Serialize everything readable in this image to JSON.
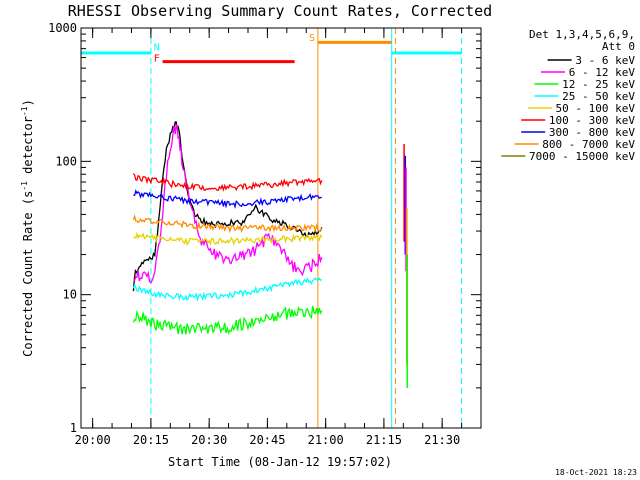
{
  "chart_data": {
    "type": "line",
    "title": "RHESSI Observing Summary Count Rates, Corrected",
    "xlabel": "Start Time (08-Jan-12 19:57:02)",
    "ylabel_parts": [
      "Corrected Count Rate (s",
      "-1",
      " detector",
      "-1",
      ")"
    ],
    "yscale": "log",
    "ylim": [
      1,
      1000
    ],
    "xlim_minutes": [
      -3,
      100
    ],
    "x_ticks": [
      {
        "label": "20:00",
        "minutes": 0
      },
      {
        "label": "20:15",
        "minutes": 15
      },
      {
        "label": "20:30",
        "minutes": 30
      },
      {
        "label": "20:45",
        "minutes": 45
      },
      {
        "label": "21:00",
        "minutes": 60
      },
      {
        "label": "21:15",
        "minutes": 75
      },
      {
        "label": "21:30",
        "minutes": 90
      }
    ],
    "y_ticks": [
      {
        "label": "1",
        "value": 1
      },
      {
        "label": "10",
        "value": 10
      },
      {
        "label": "100",
        "value": 100
      },
      {
        "label": "1000",
        "value": 1000
      }
    ],
    "legend": {
      "header": [
        "Det 1,3,4,5,6,9,",
        "Att 0"
      ],
      "position": "right"
    },
    "series": [
      {
        "name": "3 - 6 keV",
        "color": "#000000",
        "x": [
          10.5,
          11,
          12,
          13,
          14,
          16,
          17,
          18,
          19,
          20,
          21,
          21.5,
          22,
          22.5,
          23,
          24,
          25,
          26,
          27,
          28,
          29,
          30,
          32,
          34,
          36,
          38,
          40,
          42,
          44,
          46,
          48,
          50,
          52,
          54,
          56,
          58,
          59
        ],
        "y": [
          11,
          15,
          16,
          17,
          18,
          20,
          35,
          70,
          120,
          160,
          185,
          190,
          180,
          150,
          110,
          70,
          50,
          42,
          38,
          36,
          35,
          34,
          34,
          33,
          35,
          34,
          38,
          46,
          40,
          37,
          35,
          33,
          31,
          29,
          28,
          29,
          32
        ]
      },
      {
        "name": "6 - 12 keV",
        "color": "#ff00ff",
        "x": [
          10.5,
          12,
          14,
          16,
          17,
          18,
          19,
          20,
          21,
          21.5,
          22,
          22.5,
          23,
          24,
          25,
          26,
          27,
          28,
          29,
          30,
          32,
          34,
          36,
          38,
          40,
          42,
          44,
          45,
          46,
          48,
          50,
          52,
          54,
          56,
          58,
          59
        ],
        "y": [
          14,
          14,
          13,
          14,
          22,
          40,
          80,
          130,
          170,
          175,
          160,
          130,
          100,
          70,
          50,
          38,
          30,
          25,
          23,
          21,
          20,
          19,
          18,
          19,
          20,
          22,
          25,
          30,
          27,
          22,
          19,
          16,
          15,
          16,
          18,
          19
        ]
      },
      {
        "name": "12 - 25 keV",
        "color": "#00ff00",
        "x": [
          10.5,
          12,
          14,
          16,
          18,
          20,
          22,
          24,
          26,
          28,
          30,
          32,
          34,
          36,
          38,
          40,
          42,
          44,
          46,
          48,
          50,
          52,
          54,
          56,
          58,
          59
        ],
        "y": [
          6.5,
          7,
          6.5,
          6,
          6,
          5.8,
          5.6,
          5.5,
          5.5,
          5.5,
          5.6,
          5.6,
          5.7,
          5.7,
          6,
          6,
          6.2,
          6.5,
          6.8,
          7,
          7.2,
          7.3,
          7.3,
          7.4,
          7.5,
          7.6
        ]
      },
      {
        "name": "25 - 50 keV",
        "color": "#00ffff",
        "x": [
          10.5,
          12,
          14,
          16,
          18,
          20,
          22,
          24,
          26,
          28,
          30,
          32,
          34,
          36,
          38,
          40,
          42,
          44,
          46,
          48,
          50,
          52,
          54,
          56,
          58,
          59
        ],
        "y": [
          11.5,
          11,
          10.5,
          10,
          10,
          9.8,
          9.7,
          9.6,
          9.6,
          9.6,
          9.7,
          9.8,
          9.9,
          10,
          10.2,
          10.5,
          10.8,
          11,
          11.3,
          11.6,
          12,
          12.2,
          12.4,
          12.6,
          12.8,
          13
        ]
      },
      {
        "name": "50 - 100 keV",
        "color": "#e6d200",
        "x": [
          10.5,
          12,
          14,
          16,
          18,
          20,
          22,
          24,
          26,
          28,
          30,
          32,
          34,
          36,
          38,
          40,
          42,
          44,
          46,
          48,
          50,
          52,
          54,
          56,
          58,
          59
        ],
        "y": [
          28,
          27.5,
          27,
          26.5,
          26,
          25.8,
          25.5,
          25.2,
          25,
          25,
          25,
          25,
          25.2,
          25.3,
          25.5,
          25.6,
          25.8,
          26,
          26,
          26.2,
          26.3,
          26.5,
          26.7,
          26.8,
          27,
          27
        ]
      },
      {
        "name": "100 - 300 keV",
        "color": "#ff0000",
        "x": [
          10.5,
          12,
          14,
          16,
          18,
          20,
          22,
          24,
          26,
          28,
          30,
          32,
          34,
          36,
          38,
          40,
          42,
          44,
          46,
          48,
          50,
          52,
          54,
          56,
          58,
          59
        ],
        "y": [
          77,
          75,
          73,
          72,
          70,
          68,
          66,
          65,
          64,
          63.5,
          63,
          63,
          63,
          63.5,
          64,
          64.5,
          65,
          66,
          67,
          68,
          69,
          70,
          70.5,
          71,
          71.5,
          72
        ]
      },
      {
        "name": "300 - 800 keV",
        "color": "#0000ff",
        "x": [
          10.5,
          12,
          14,
          16,
          18,
          20,
          22,
          24,
          26,
          28,
          30,
          32,
          34,
          36,
          38,
          40,
          42,
          44,
          46,
          48,
          50,
          52,
          54,
          56,
          58,
          59
        ],
        "y": [
          58,
          57,
          56,
          55,
          54,
          53,
          52,
          51,
          50,
          49.5,
          49,
          48.5,
          48,
          48,
          48,
          48.5,
          49,
          49.5,
          50,
          51,
          52,
          52.5,
          53,
          53.5,
          54,
          54
        ]
      },
      {
        "name": "800 - 7000 keV",
        "color": "#ff8c00",
        "x": [
          10.5,
          12,
          14,
          16,
          18,
          20,
          22,
          24,
          26,
          28,
          30,
          32,
          34,
          36,
          38,
          40,
          42,
          44,
          46,
          48,
          50,
          52,
          54,
          56,
          58,
          59
        ],
        "y": [
          37,
          36.5,
          36,
          35.5,
          35,
          34.5,
          34,
          33.5,
          33,
          32.5,
          32,
          32,
          31.5,
          31.5,
          31.5,
          31.5,
          31.5,
          31.5,
          31.5,
          31.5,
          31.5,
          31.5,
          31.5,
          31.5,
          31.5,
          31.5
        ]
      },
      {
        "name": "7000 - 15000 keV",
        "color": "#808000",
        "x": [],
        "y": []
      }
    ],
    "post_gap_spikes": [
      {
        "color": "#ff0000",
        "x": 80.2,
        "y_top": 135,
        "y_bottom": 25
      },
      {
        "color": "#0000ff",
        "x": 80.5,
        "y_top": 110,
        "y_bottom": 20
      },
      {
        "color": "#ff00ff",
        "x": 80.7,
        "y_top": 90,
        "y_bottom": 15
      },
      {
        "color": "#ff8c00",
        "x": 80.9,
        "y_top": 45,
        "y_bottom": 3
      },
      {
        "color": "#00ff00",
        "x": 81.0,
        "y_top": 20,
        "y_bottom": 2
      }
    ],
    "attenuator_bars": [
      {
        "color": "#00ffff",
        "x_start": -3,
        "x_end": 15,
        "y": 650
      },
      {
        "color": "#00ffff",
        "x_start": 77,
        "x_end": 95,
        "y": 650
      },
      {
        "color": "#ff8c00",
        "x_start": 58,
        "x_end": 77,
        "y": 780
      },
      {
        "color": "#ff0000",
        "x_start": 18,
        "x_end": 52,
        "y": 560
      }
    ],
    "vertical_lines": [
      {
        "color": "#00ffff",
        "style": "solid",
        "x": -3
      },
      {
        "color": "#00ffff",
        "style": "dashed",
        "x": 15
      },
      {
        "color": "#ff8c00",
        "style": "solid",
        "x": 58
      },
      {
        "color": "#00ffff",
        "style": "solid",
        "x": 77
      },
      {
        "color": "#ff8c00",
        "style": "dashed",
        "x": 78
      },
      {
        "color": "#00ffff",
        "style": "dashed",
        "x": 95
      }
    ],
    "markers": [
      {
        "label": "N",
        "color": "#00ffff",
        "x": 16.5,
        "y": 680
      },
      {
        "label": "F",
        "color": "#ff0000",
        "x": 16.5,
        "y": 560
      },
      {
        "label": "S",
        "color": "#ff8c00",
        "x": 56.5,
        "y": 800
      }
    ],
    "footer_date": "18-Oct-2021 18:23"
  }
}
